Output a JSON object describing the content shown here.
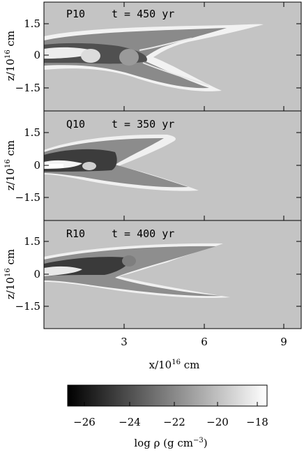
{
  "panels": [
    {
      "id": "P10",
      "label": "P10",
      "time": "t = 450 yr",
      "y_ticks": [
        "1.5",
        "0",
        "−1.5"
      ]
    },
    {
      "id": "Q10",
      "label": "Q10",
      "time": "t = 350 yr",
      "y_ticks": [
        "1.5",
        "0",
        "−1.5"
      ]
    },
    {
      "id": "R10",
      "label": "R10",
      "time": "t = 400 yr",
      "y_ticks": [
        "1.5",
        "0",
        "−1.5"
      ]
    }
  ],
  "y_label": {
    "main": "z/10",
    "exp": "16",
    "unit": " cm"
  },
  "x_ticks": [
    "3",
    "6",
    "9"
  ],
  "x_label": {
    "main": "x/10",
    "exp": "16",
    "unit": " cm"
  },
  "colorbar": {
    "ticks": [
      "−26",
      "−24",
      "−22",
      "−20",
      "−18"
    ],
    "label_main": "log ρ (g cm",
    "label_exp": "−3",
    "label_end": ")"
  },
  "colors": {
    "background_gray": "#c4c4c4",
    "dark_gray": "#3a3a3a",
    "light_gray": "#ececec"
  }
}
